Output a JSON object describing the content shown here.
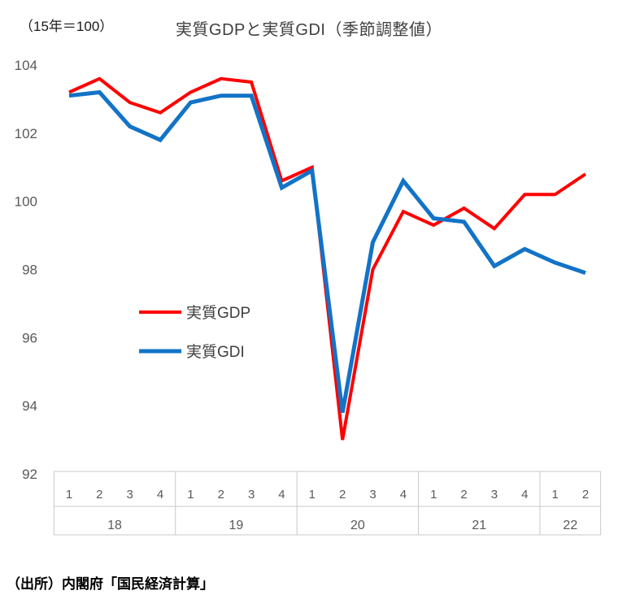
{
  "header": {
    "unit_label": "（15年＝100）",
    "title": "実質GDPと実質GDI（季節調整値）"
  },
  "footer": {
    "source": "（出所）内閣府「国民経済計算」"
  },
  "chart_data": {
    "type": "line",
    "title": "実質GDPと実質GDI（季節調整値）",
    "unit_note": "（15年＝100）",
    "source": "（出所）内閣府「国民経済計算」",
    "grid": false,
    "legend_position": "inside-middle-left",
    "ylim": [
      92,
      104
    ],
    "yticks": [
      104,
      102,
      100,
      98,
      96,
      94,
      92
    ],
    "x_axis": {
      "quarter_labels": [
        "1",
        "2",
        "3",
        "4",
        "1",
        "2",
        "3",
        "4",
        "1",
        "2",
        "3",
        "4",
        "1",
        "2",
        "3",
        "4",
        "1",
        "2"
      ],
      "year_groups": [
        {
          "label": "18",
          "count": 4
        },
        {
          "label": "19",
          "count": 4
        },
        {
          "label": "20",
          "count": 4
        },
        {
          "label": "21",
          "count": 4
        },
        {
          "label": "22",
          "count": 2
        }
      ]
    },
    "series": [
      {
        "name": "実質GDP",
        "color": "#ff0000",
        "stroke_width": 4,
        "values": [
          103.2,
          103.6,
          102.9,
          102.6,
          103.2,
          103.6,
          103.5,
          100.6,
          101.0,
          93.0,
          98.0,
          99.7,
          99.3,
          99.8,
          99.2,
          100.2,
          100.2,
          100.8
        ]
      },
      {
        "name": "実質GDI",
        "color": "#1273c7",
        "stroke_width": 5,
        "values": [
          103.1,
          103.2,
          102.2,
          101.8,
          102.9,
          103.1,
          103.1,
          100.4,
          100.9,
          93.8,
          98.8,
          100.6,
          99.5,
          99.4,
          98.1,
          98.6,
          98.2,
          97.9
        ]
      }
    ],
    "colors": {
      "axis_line": "#c9c9c9",
      "tick_label": "#595959",
      "title_text": "#3f3f3f",
      "source_text": "#000000"
    }
  }
}
